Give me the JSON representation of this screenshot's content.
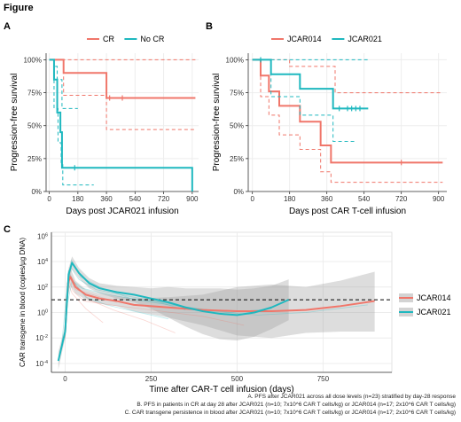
{
  "figure": {
    "title": "Figure",
    "caption": [
      "A. PFS after JCAR021 across all dose levels (n=23) stratified by day-28 response",
      "B. PFS in patients in CR at day 28 after JCAR021 (n=10; 7x10^6 CAR T cells/kg) or JCAR014 (n=17; 2x10^6 CAR T cells/kg)",
      "C. CAR transgene persistence in blood after JCAR021 (n=10; 7x10^6 CAR T cells/kg) or JCAR014 (n=17; 2x10^6 CAR T cells/kg)"
    ]
  },
  "colors": {
    "red": "#f0766a",
    "teal": "#1fb8bf",
    "band": "#bdbdbd",
    "grid": "#ececec"
  },
  "chart_data": [
    {
      "type": "line",
      "panel": "A",
      "subtype": "kaplan-meier step",
      "xlabel": "Days post JCAR021 infusion",
      "ylabel": "Progression-free survival",
      "xlim": [
        -20,
        940
      ],
      "ylim": [
        0,
        1.05
      ],
      "xticks": [
        0,
        180,
        360,
        540,
        720,
        900
      ],
      "yticks": [
        0,
        0.25,
        0.5,
        0.75,
        1.0
      ],
      "ytick_labels": [
        "0%",
        "25%",
        "50%",
        "75%",
        "100%"
      ],
      "legend_labels": [
        "CR",
        "No CR"
      ],
      "legend_position": "top",
      "series": [
        {
          "name": "CR",
          "color": "#f0766a",
          "x": [
            0,
            30,
            90,
            90,
            360,
            360,
            920
          ],
          "y": [
            1.0,
            1.0,
            1.0,
            0.9,
            0.9,
            0.71,
            0.71
          ],
          "lower": {
            "x": [
              0,
              90,
              90,
              360,
              360,
              920
            ],
            "y": [
              1.0,
              1.0,
              0.73,
              0.73,
              0.47,
              0.47
            ]
          },
          "upper": {
            "x": [
              0,
              920
            ],
            "y": [
              1.0,
              1.0
            ]
          },
          "censor": [
            [
              380,
              0.71
            ],
            [
              460,
              0.71
            ]
          ]
        },
        {
          "name": "No CR",
          "color": "#1fb8bf",
          "x": [
            0,
            30,
            30,
            50,
            50,
            70,
            70,
            80,
            80,
            900,
            900
          ],
          "y": [
            1.0,
            1.0,
            0.85,
            0.85,
            0.6,
            0.6,
            0.45,
            0.45,
            0.18,
            0.18,
            0.0
          ],
          "lower": {
            "x": [
              0,
              30,
              30,
              55,
              55,
              75,
              75,
              85,
              85,
              280
            ],
            "y": [
              1.0,
              1.0,
              0.63,
              0.63,
              0.37,
              0.37,
              0.22,
              0.22,
              0.05,
              0.05
            ]
          },
          "upper": {
            "x": [
              0,
              30,
              30,
              50,
              50,
              80,
              80,
              180
            ],
            "y": [
              1.0,
              1.0,
              0.95,
              0.95,
              0.85,
              0.85,
              0.63,
              0.63
            ]
          },
          "censor": [
            [
              160,
              0.18
            ]
          ]
        }
      ]
    },
    {
      "type": "line",
      "panel": "B",
      "subtype": "kaplan-meier step",
      "xlabel": "Days post CAR T-cell infusion",
      "ylabel": "Progression-free survival",
      "xlim": [
        -20,
        940
      ],
      "ylim": [
        0,
        1.05
      ],
      "xticks": [
        0,
        180,
        360,
        540,
        720,
        900
      ],
      "yticks": [
        0,
        0.25,
        0.5,
        0.75,
        1.0
      ],
      "ytick_labels": [
        "0%",
        "25%",
        "50%",
        "75%",
        "100%"
      ],
      "legend_labels": [
        "JCAR014",
        "JCAR021"
      ],
      "legend_position": "top",
      "series": [
        {
          "name": "JCAR014",
          "color": "#f0766a",
          "x": [
            0,
            40,
            40,
            80,
            80,
            130,
            130,
            230,
            230,
            330,
            330,
            380,
            380,
            920
          ],
          "y": [
            1.0,
            1.0,
            0.88,
            0.88,
            0.76,
            0.76,
            0.65,
            0.65,
            0.53,
            0.53,
            0.35,
            0.35,
            0.22,
            0.22
          ],
          "lower": {
            "x": [
              0,
              40,
              40,
              80,
              80,
              130,
              130,
              230,
              230,
              330,
              330,
              380,
              380,
              920
            ],
            "y": [
              1.0,
              1.0,
              0.72,
              0.72,
              0.58,
              0.58,
              0.43,
              0.43,
              0.32,
              0.32,
              0.15,
              0.15,
              0.07,
              0.07
            ]
          },
          "upper": {
            "x": [
              0,
              180,
              180,
              400,
              400,
              920
            ],
            "y": [
              1.0,
              1.0,
              0.95,
              0.95,
              0.75,
              0.75
            ]
          },
          "censor": [
            [
              720,
              0.22
            ]
          ]
        },
        {
          "name": "JCAR021",
          "color": "#1fb8bf",
          "x": [
            0,
            90,
            90,
            230,
            230,
            390,
            390,
            560
          ],
          "y": [
            1.0,
            1.0,
            0.89,
            0.89,
            0.78,
            0.78,
            0.63,
            0.63
          ],
          "lower": {
            "x": [
              0,
              90,
              90,
              230,
              230,
              390,
              390,
              500
            ],
            "y": [
              1.0,
              1.0,
              0.72,
              0.72,
              0.58,
              0.58,
              0.38,
              0.38
            ]
          },
          "upper": {
            "x": [
              0,
              560
            ],
            "y": [
              1.0,
              1.0
            ]
          },
          "censor": [
            [
              40,
              1.0
            ],
            [
              420,
              0.63
            ],
            [
              460,
              0.63
            ],
            [
              480,
              0.63
            ],
            [
              500,
              0.63
            ],
            [
              520,
              0.63
            ]
          ]
        }
      ]
    },
    {
      "type": "line",
      "panel": "C",
      "subtype": "smoothed trend with confidence band",
      "xlabel": "Time after CAR-T cell infusion (days)",
      "ylabel": "CAR transgene in blood (copies/µg DNA)",
      "xlim": [
        -40,
        950
      ],
      "ylim_log10": [
        -4.7,
        6.3
      ],
      "xticks": [
        0,
        250,
        500,
        750
      ],
      "yticks_log10": [
        -4,
        -2,
        0,
        2,
        4,
        6
      ],
      "threshold_log10": 1.0,
      "legend_labels": [
        "JCAR014",
        "JCAR021"
      ],
      "legend_position": "right",
      "series": [
        {
          "name": "JCAR014",
          "color": "#f0766a",
          "x": [
            0,
            8,
            15,
            30,
            60,
            100,
            150,
            200,
            300,
            400,
            500,
            600,
            700,
            800,
            900
          ],
          "log10_y": [
            -1.5,
            2.3,
            2.8,
            2.0,
            1.4,
            1.1,
            0.9,
            0.6,
            0.4,
            0.2,
            0.1,
            0.1,
            0.2,
            0.5,
            0.9
          ],
          "band_low": [
            -2.5,
            1.3,
            2.1,
            1.5,
            1.0,
            0.7,
            0.5,
            0.1,
            -0.4,
            -1.0,
            -1.8,
            -2.0,
            -1.6,
            -1.5,
            -1.5
          ],
          "band_high": [
            -0.5,
            3.3,
            3.5,
            2.5,
            1.8,
            1.5,
            1.3,
            1.1,
            1.2,
            1.4,
            2.0,
            2.2,
            2.0,
            2.5,
            3.2
          ]
        },
        {
          "name": "JCAR021",
          "color": "#1fb8bf",
          "x": [
            -20,
            0,
            10,
            20,
            40,
            70,
            100,
            150,
            200,
            250,
            300,
            350,
            400,
            450,
            500,
            550,
            600,
            650
          ],
          "log10_y": [
            -3.8,
            -1.5,
            3.0,
            3.9,
            3.1,
            2.3,
            1.9,
            1.6,
            1.4,
            1.1,
            0.8,
            0.4,
            0.1,
            -0.1,
            -0.2,
            0.0,
            0.4,
            1.0
          ],
          "band_low": [
            -4.5,
            -2.0,
            2.5,
            3.4,
            2.7,
            1.9,
            1.5,
            1.1,
            0.8,
            0.3,
            -0.4,
            -1.1,
            -1.7,
            -2.1,
            -2.2,
            -1.9,
            -1.3,
            -0.6
          ],
          "band_high": [
            -3.1,
            -1.0,
            3.5,
            4.4,
            3.5,
            2.7,
            2.3,
            2.1,
            2.0,
            1.9,
            2.0,
            1.9,
            1.9,
            1.9,
            1.8,
            1.9,
            2.1,
            2.6
          ]
        }
      ]
    }
  ]
}
